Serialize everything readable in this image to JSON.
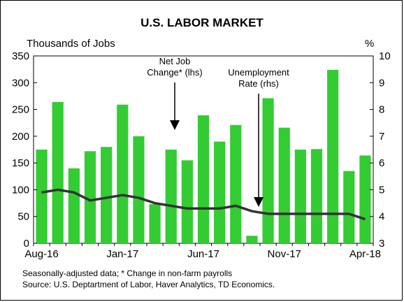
{
  "chart_data": {
    "type": "bar",
    "title": "U.S. LABOR MARKET",
    "left_axis_label": "Thousands of Jobs",
    "right_axis_label": "%",
    "left_ylim": [
      0,
      350
    ],
    "left_yticks": [
      "0",
      "50",
      "100",
      "150",
      "200",
      "250",
      "300",
      "350"
    ],
    "right_ylim": [
      3,
      10
    ],
    "right_yticks": [
      "3",
      "4",
      "5",
      "6",
      "7",
      "8",
      "9",
      "10"
    ],
    "x_tick_labels": [
      "Aug-16",
      "Jan-17",
      "Jun-17",
      "Nov-17",
      "Apr-18"
    ],
    "x_tick_indices": [
      0,
      5,
      10,
      15,
      20
    ],
    "categories": [
      "Aug-16",
      "Sep-16",
      "Oct-16",
      "Nov-16",
      "Dec-16",
      "Jan-17",
      "Feb-17",
      "Mar-17",
      "Apr-17",
      "May-17",
      "Jun-17",
      "Jul-17",
      "Aug-17",
      "Sep-17",
      "Oct-17",
      "Nov-17",
      "Dec-17",
      "Jan-18",
      "Feb-18",
      "Mar-18",
      "Apr-18"
    ],
    "series": [
      {
        "axis": "left",
        "kind": "bar",
        "color": "#33cc33",
        "values": [
          175,
          264,
          140,
          172,
          180,
          259,
          200,
          73,
          175,
          155,
          239,
          190,
          221,
          14,
          271,
          216,
          175,
          176,
          324,
          135,
          164
        ]
      },
      {
        "axis": "right",
        "kind": "line",
        "color": "#333333",
        "values": [
          4.9,
          5.0,
          4.9,
          4.6,
          4.7,
          4.8,
          4.7,
          4.5,
          4.4,
          4.3,
          4.3,
          4.3,
          4.4,
          4.2,
          4.1,
          4.1,
          4.1,
          4.1,
          4.1,
          4.1,
          3.9
        ]
      }
    ],
    "annotations": [
      {
        "text": "Net Job",
        "text2": "Change* (lhs)"
      },
      {
        "text": "Unemployment",
        "text2": "Rate (rhs)"
      }
    ],
    "footnote": "Seasonally-adjusted data; * Change in non-farm payrolls",
    "source": "Source: U.S. Deptartment of Labor, Haver Analytics, TD Economics.",
    "grid": false,
    "legend": "none"
  }
}
